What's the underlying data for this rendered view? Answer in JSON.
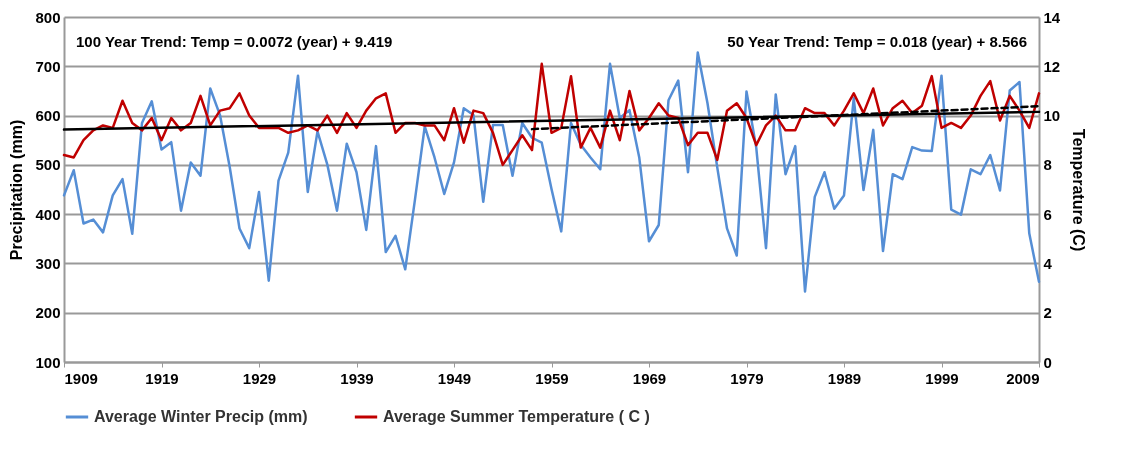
{
  "chart_data": {
    "type": "line",
    "ylabel": "Precipitation (mm)",
    "y2label": "Temperature (C)",
    "annotations": [
      "100 Year Trend: Temp = 0.0072 (year) + 9.419",
      "50 Year Trend: Temp = 0.018 (year) + 8.566"
    ],
    "x": [
      1909,
      1910,
      1911,
      1912,
      1913,
      1914,
      1915,
      1916,
      1917,
      1918,
      1919,
      1920,
      1921,
      1922,
      1923,
      1924,
      1925,
      1926,
      1927,
      1928,
      1929,
      1930,
      1931,
      1932,
      1933,
      1934,
      1935,
      1936,
      1937,
      1938,
      1939,
      1940,
      1941,
      1942,
      1943,
      1944,
      1945,
      1946,
      1947,
      1948,
      1949,
      1950,
      1951,
      1952,
      1953,
      1954,
      1955,
      1956,
      1957,
      1958,
      1959,
      1960,
      1961,
      1962,
      1963,
      1964,
      1965,
      1966,
      1967,
      1968,
      1969,
      1970,
      1971,
      1972,
      1973,
      1974,
      1975,
      1976,
      1977,
      1978,
      1979,
      1980,
      1981,
      1982,
      1983,
      1984,
      1985,
      1986,
      1987,
      1988,
      1989,
      1990,
      1991,
      1992,
      1993,
      1994,
      1995,
      1996,
      1997,
      1998,
      1999,
      2000,
      2001,
      2002,
      2003,
      2004,
      2005,
      2006,
      2007,
      2008,
      2009
    ],
    "series": [
      {
        "name": "Average Winter Precip (mm)",
        "color": "#558ed5",
        "values": [
          438,
          489,
          381,
          389,
          363,
          438,
          471,
          360,
          585,
          629,
          531,
          546,
          407,
          505,
          478,
          655,
          601,
          495,
          371,
          331,
          445,
          265,
          468,
          525,
          681,
          445,
          568,
          501,
          407,
          543,
          485,
          368,
          538,
          323,
          356,
          288,
          430,
          578,
          515,
          441,
          505,
          615,
          601,
          425,
          581,
          581,
          478,
          585,
          555,
          545,
          451,
          365,
          585,
          541,
          515,
          491,
          705,
          595,
          611,
          515,
          345,
          378,
          631,
          671,
          485,
          728,
          625,
          495,
          371,
          316,
          649,
          535,
          331,
          643,
          481,
          538,
          243,
          435,
          485,
          411,
          438,
          635,
          449,
          571,
          325,
          481,
          471,
          536,
          529,
          528,
          681,
          409,
          399,
          491,
          481,
          520,
          448,
          651,
          668,
          361,
          263
        ]
      },
      {
        "name": "Average Summer Temperature ( C )",
        "color": "#c00000",
        "axis": "y2",
        "values": [
          8.4,
          8.3,
          9.0,
          9.4,
          9.6,
          9.5,
          10.6,
          9.7,
          9.4,
          9.9,
          9.0,
          9.9,
          9.4,
          9.7,
          10.8,
          9.6,
          10.2,
          10.3,
          10.9,
          10.0,
          9.5,
          9.5,
          9.5,
          9.3,
          9.4,
          9.6,
          9.4,
          10.0,
          9.3,
          10.1,
          9.5,
          10.2,
          10.7,
          10.9,
          9.3,
          9.7,
          9.7,
          9.6,
          9.6,
          9.0,
          10.3,
          8.9,
          10.2,
          10.1,
          9.3,
          8.0,
          8.6,
          9.2,
          8.6,
          12.1,
          9.3,
          9.5,
          11.6,
          8.7,
          9.5,
          8.7,
          10.2,
          9.0,
          11.0,
          9.4,
          9.9,
          10.5,
          10.0,
          9.9,
          8.8,
          9.3,
          9.3,
          8.2,
          10.2,
          10.5,
          9.9,
          8.8,
          9.6,
          10.0,
          9.4,
          9.4,
          10.3,
          10.1,
          10.1,
          9.6,
          10.2,
          10.9,
          10.1,
          11.1,
          9.6,
          10.3,
          10.6,
          10.1,
          10.4,
          11.6,
          9.5,
          9.7,
          9.5,
          10.0,
          10.8,
          11.4,
          9.8,
          10.8,
          10.2,
          9.5,
          10.9
        ]
      },
      {
        "type": "line",
        "color": "#000000",
        "axis": "y2",
        "x": [
          1909,
          2009
        ],
        "values": [
          9.43,
          10.15
        ]
      },
      {
        "type": "line",
        "color": "#000000",
        "axis": "y2",
        "line_style": "dashed",
        "x": [
          1957,
          2009
        ],
        "values": [
          9.45,
          10.38
        ]
      }
    ],
    "xlim": [
      1909,
      2009
    ],
    "xticks": [
      1909,
      1919,
      1929,
      1939,
      1949,
      1959,
      1969,
      1979,
      1989,
      1999,
      2009
    ],
    "ylim": [
      100,
      800
    ],
    "yticks": [
      100,
      200,
      300,
      400,
      500,
      600,
      700,
      800
    ],
    "y2lim": [
      0,
      14
    ],
    "y2ticks": [
      0,
      2,
      4,
      6,
      8,
      10,
      12,
      14
    ],
    "grid": "y",
    "legend": "bottom",
    "line_style": "solid",
    "marker": "none"
  }
}
